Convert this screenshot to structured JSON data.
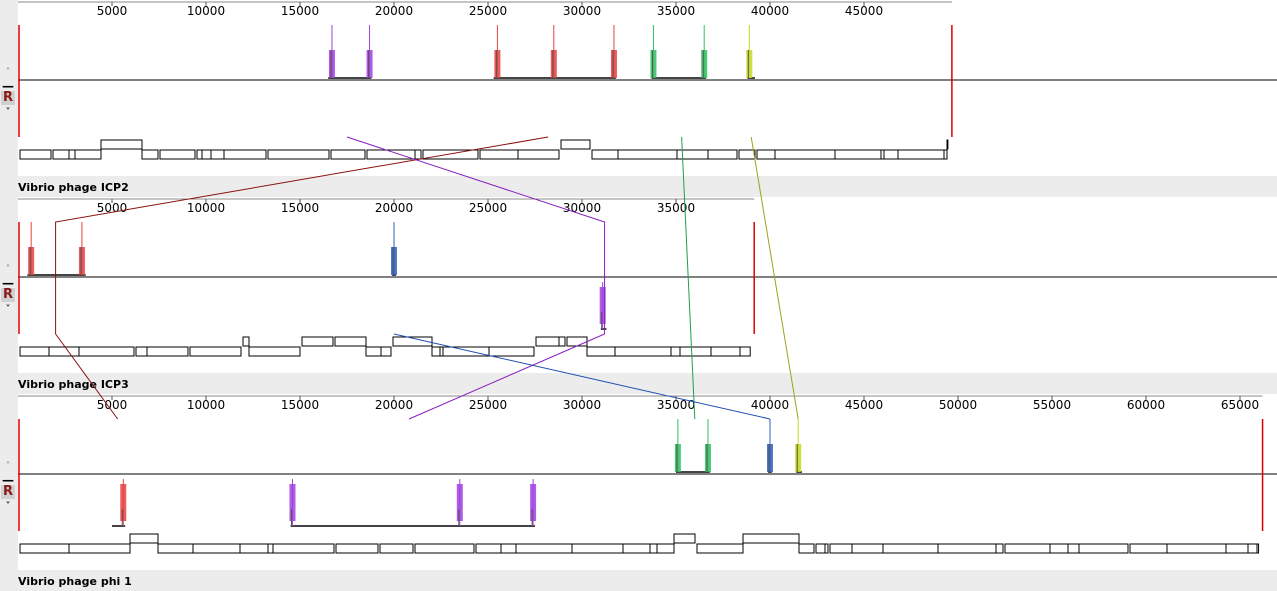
{
  "genomes": [
    {
      "name": "Vibrio phage ICP2",
      "length": 49675,
      "ruler_ticks": [
        5000,
        10000,
        15000,
        20000,
        25000,
        30000,
        35000,
        40000,
        45000
      ],
      "controls": {
        "up": "˄",
        "minus": "—",
        "r": "R",
        "down": "˅"
      },
      "blocks": [
        {
          "start": 16500,
          "end": 18800,
          "color": "#a040e0",
          "strand": "+",
          "peaks": [
            16700,
            18700
          ]
        },
        {
          "start": 25300,
          "end": 31800,
          "color": "#e84040",
          "strand": "+",
          "peaks": [
            25500,
            28500,
            31700
          ]
        },
        {
          "start": 33700,
          "end": 36600,
          "color": "#30c060",
          "strand": "+",
          "peaks": [
            33800,
            36500
          ]
        },
        {
          "start": 38800,
          "end": 39200,
          "color": "#c8d820",
          "strand": "+",
          "peaks": [
            38900
          ]
        }
      ]
    },
    {
      "name": "Vibrio phage ICP3",
      "length": 39160,
      "ruler_ticks": [
        5000,
        10000,
        15000,
        20000,
        25000,
        30000,
        35000
      ],
      "controls": {
        "up": "˄",
        "minus": "—",
        "r": "R",
        "down": "˅"
      },
      "blocks": [
        {
          "start": 500,
          "end": 3600,
          "color": "#e84040",
          "strand": "+",
          "peaks": [
            700,
            3400
          ]
        },
        {
          "start": 19900,
          "end": 20100,
          "color": "#3060c0",
          "strand": "+",
          "peaks": [
            20000
          ]
        },
        {
          "start": 31000,
          "end": 31300,
          "color": "#a040e0",
          "strand": "-",
          "peaks": [
            31100
          ]
        }
      ]
    },
    {
      "name": "Vibrio phage phi 1",
      "length": 66200,
      "ruler_ticks": [
        5000,
        10000,
        15000,
        20000,
        25000,
        30000,
        35000,
        40000,
        45000,
        50000,
        55000,
        60000,
        65000
      ],
      "controls": {
        "up": "˄",
        "minus": "—",
        "r": "R",
        "down": "˅"
      },
      "blocks": [
        {
          "start": 5000,
          "end": 5700,
          "color": "#e84040",
          "strand": "-",
          "peaks": [
            5600
          ]
        },
        {
          "start": 14500,
          "end": 27500,
          "color": "#a040e0",
          "strand": "-",
          "peaks": [
            14600,
            23500,
            27400
          ]
        },
        {
          "start": 35000,
          "end": 36800,
          "color": "#30c060",
          "strand": "+",
          "peaks": [
            35100,
            36700
          ]
        },
        {
          "start": 39900,
          "end": 40100,
          "color": "#3060c0",
          "strand": "+",
          "peaks": [
            40000
          ]
        },
        {
          "start": 41400,
          "end": 41700,
          "color": "#c8d820",
          "strand": "+",
          "peaks": [
            41500
          ]
        }
      ]
    }
  ],
  "connections": [
    {
      "color": "#8b1010",
      "points": [
        [
          0,
          28200
        ],
        [
          1,
          2000
        ],
        [
          2,
          5300
        ]
      ]
    },
    {
      "color": "#8a20c0",
      "points": [
        [
          0,
          17500
        ],
        [
          1,
          31200
        ],
        [
          2,
          20800
        ]
      ]
    },
    {
      "color": "#20a050",
      "points": [
        [
          0,
          35300
        ],
        [
          2,
          36000
        ]
      ]
    },
    {
      "color": "#a0a020",
      "points": [
        [
          0,
          39000
        ],
        [
          2,
          41500
        ]
      ]
    },
    {
      "color": "#2050b0",
      "points": [
        [
          1,
          20000
        ],
        [
          2,
          40000
        ]
      ]
    }
  ]
}
